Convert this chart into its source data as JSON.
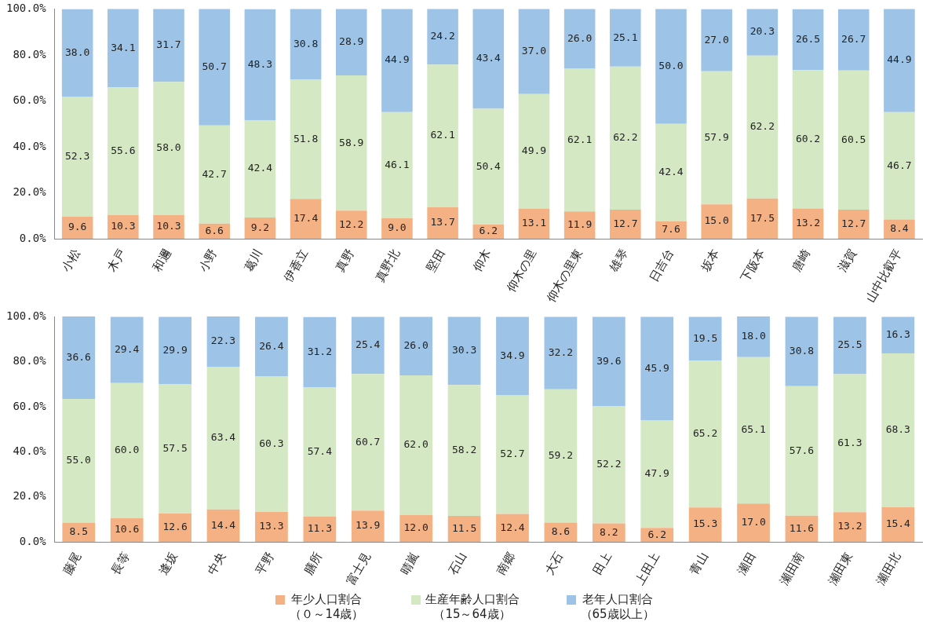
{
  "chart_data": [
    {
      "type": "bar",
      "stacked": true,
      "grid": false,
      "legend": "bottom",
      "categories": [
        "小松",
        "木戸",
        "和邇",
        "小野",
        "葛川",
        "伊香立",
        "真野",
        "真野北",
        "堅田",
        "仰木",
        "仰木の里",
        "仰木の里東",
        "雄琴",
        "日吉台",
        "坂本",
        "下阪本",
        "唐崎",
        "滋賀",
        "山中比叡平"
      ],
      "ylim": [
        0,
        100
      ],
      "yticks": [
        {
          "value": 0,
          "label": "0.0%"
        },
        {
          "value": 20,
          "label": "20.0%"
        },
        {
          "value": 40,
          "label": "40.0%"
        },
        {
          "value": 60,
          "label": "60.0%"
        },
        {
          "value": 80,
          "label": "80.0%"
        },
        {
          "value": 100,
          "label": "100.0%"
        }
      ],
      "series": [
        {
          "name": "年少人口割合（０～14歳）",
          "color": "#f4b183",
          "values": [
            9.6,
            10.3,
            10.3,
            6.6,
            9.2,
            17.4,
            12.2,
            9.0,
            13.7,
            6.2,
            13.1,
            11.9,
            12.7,
            7.6,
            15.0,
            17.5,
            13.2,
            12.7,
            8.4
          ],
          "value_labels": [
            "9.6",
            "10.3",
            "10.3",
            "6.6",
            "9.2",
            "17.4",
            "12.2",
            "9.0",
            "13.7",
            "6.2",
            "13.1",
            "11.9",
            "12.7",
            "7.6",
            "15.0",
            "17.5",
            "13.2",
            "12.7",
            "8.4"
          ]
        },
        {
          "name": "生産年齢人口割合（15～64歳）",
          "color": "#d5e8c4",
          "values": [
            52.3,
            55.6,
            58.0,
            42.7,
            42.4,
            51.8,
            58.9,
            46.1,
            62.1,
            50.4,
            49.9,
            62.1,
            62.2,
            42.4,
            57.9,
            62.2,
            60.2,
            60.5,
            46.7
          ],
          "value_labels": [
            "52.3",
            "55.6",
            "58.0",
            "42.7",
            "42.4",
            "51.8",
            "58.9",
            "46.1",
            "62.1",
            "50.4",
            "49.9",
            "62.1",
            "62.2",
            "42.4",
            "57.9",
            "62.2",
            "60.2",
            "60.5",
            "46.7"
          ]
        },
        {
          "name": "老年人口割合（65歳以上）",
          "color": "#9dc3e6",
          "values": [
            38.0,
            34.1,
            31.7,
            50.7,
            48.3,
            30.8,
            28.9,
            44.9,
            24.2,
            43.4,
            37.0,
            26.0,
            25.1,
            50.0,
            27.0,
            20.3,
            26.5,
            26.7,
            44.9
          ],
          "value_labels": [
            "38.0",
            "34.1",
            "31.7",
            "50.7",
            "48.3",
            "30.8",
            "28.9",
            "44.9",
            "24.2",
            "43.4",
            "37.0",
            "26.0",
            "25.1",
            "50.0",
            "27.0",
            "20.3",
            "26.5",
            "26.7",
            "44.9"
          ]
        }
      ]
    },
    {
      "type": "bar",
      "stacked": true,
      "grid": false,
      "categories": [
        "藤尾",
        "長等",
        "逢坂",
        "中央",
        "平野",
        "膳所",
        "富士見",
        "晴嵐",
        "石山",
        "南郷",
        "大石",
        "田上",
        "上田上",
        "青山",
        "瀬田",
        "瀬田南",
        "瀬田東",
        "瀬田北"
      ],
      "ylim": [
        0,
        100
      ],
      "yticks": [
        {
          "value": 0,
          "label": "0.0%"
        },
        {
          "value": 20,
          "label": "20.0%"
        },
        {
          "value": 40,
          "label": "40.0%"
        },
        {
          "value": 60,
          "label": "60.0%"
        },
        {
          "value": 80,
          "label": "80.0%"
        },
        {
          "value": 100,
          "label": "100.0%"
        }
      ],
      "series": [
        {
          "color": "#f4b183",
          "values": [
            8.5,
            10.6,
            12.6,
            14.4,
            13.3,
            11.3,
            13.9,
            12.0,
            11.5,
            12.4,
            8.6,
            8.2,
            6.2,
            15.3,
            17.0,
            11.6,
            13.2,
            15.4
          ],
          "value_labels": [
            "8.5",
            "10.6",
            "12.6",
            "14.4",
            "13.3",
            "11.3",
            "13.9",
            "12.0",
            "11.5",
            "12.4",
            "8.6",
            "8.2",
            "6.2",
            "15.3",
            "17.0",
            "11.6",
            "13.2",
            "15.4"
          ]
        },
        {
          "color": "#d5e8c4",
          "values": [
            55.0,
            60.0,
            57.5,
            63.4,
            60.3,
            57.4,
            60.7,
            62.0,
            58.2,
            52.7,
            59.2,
            52.2,
            47.9,
            65.2,
            65.1,
            57.6,
            61.3,
            68.3
          ],
          "value_labels": [
            "55.0",
            "60.0",
            "57.5",
            "63.4",
            "60.3",
            "57.4",
            "60.7",
            "62.0",
            "58.2",
            "52.7",
            "59.2",
            "52.2",
            "47.9",
            "65.2",
            "65.1",
            "57.6",
            "61.3",
            "68.3"
          ]
        },
        {
          "color": "#9dc3e6",
          "values": [
            36.6,
            29.4,
            29.9,
            22.3,
            26.4,
            31.2,
            25.4,
            26.0,
            30.3,
            34.9,
            32.2,
            39.6,
            45.9,
            19.5,
            18.0,
            30.8,
            25.5,
            16.3
          ],
          "value_labels": [
            "36.6",
            "29.4",
            "29.9",
            "22.3",
            "26.4",
            "31.2",
            "25.4",
            "26.0",
            "30.3",
            "34.9",
            "32.2",
            "39.6",
            "45.9",
            "19.5",
            "18.0",
            "30.8",
            "25.5",
            "16.3"
          ]
        }
      ]
    }
  ]
}
